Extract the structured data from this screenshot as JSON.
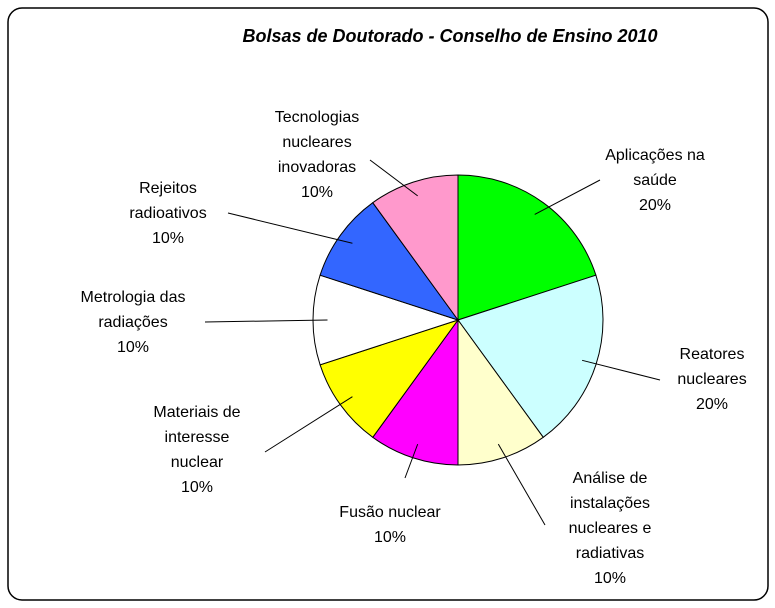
{
  "chart_data": {
    "type": "pie",
    "title": "Bolsas de Doutorado - Conselho de Ensino 2010",
    "categories": [
      "Aplicações na saúde",
      "Reatores nucleares",
      "Análise de instalações nucleares e radiativas",
      "Fusão nuclear",
      "Materiais de interesse nuclear",
      "Metrologia das radiações",
      "Rejeitos radioativos",
      "Tecnologias nucleares inovadoras"
    ],
    "values": [
      20,
      20,
      10,
      10,
      10,
      10,
      10,
      10
    ],
    "value_labels": [
      "20%",
      "20%",
      "10%",
      "10%",
      "10%",
      "10%",
      "10%",
      "10%"
    ],
    "colors": [
      "#00ff00",
      "#ccffff",
      "#ffffcc",
      "#ff00ff",
      "#ffff00",
      "#ffffff",
      "#3366ff",
      "#ff99cc"
    ]
  }
}
